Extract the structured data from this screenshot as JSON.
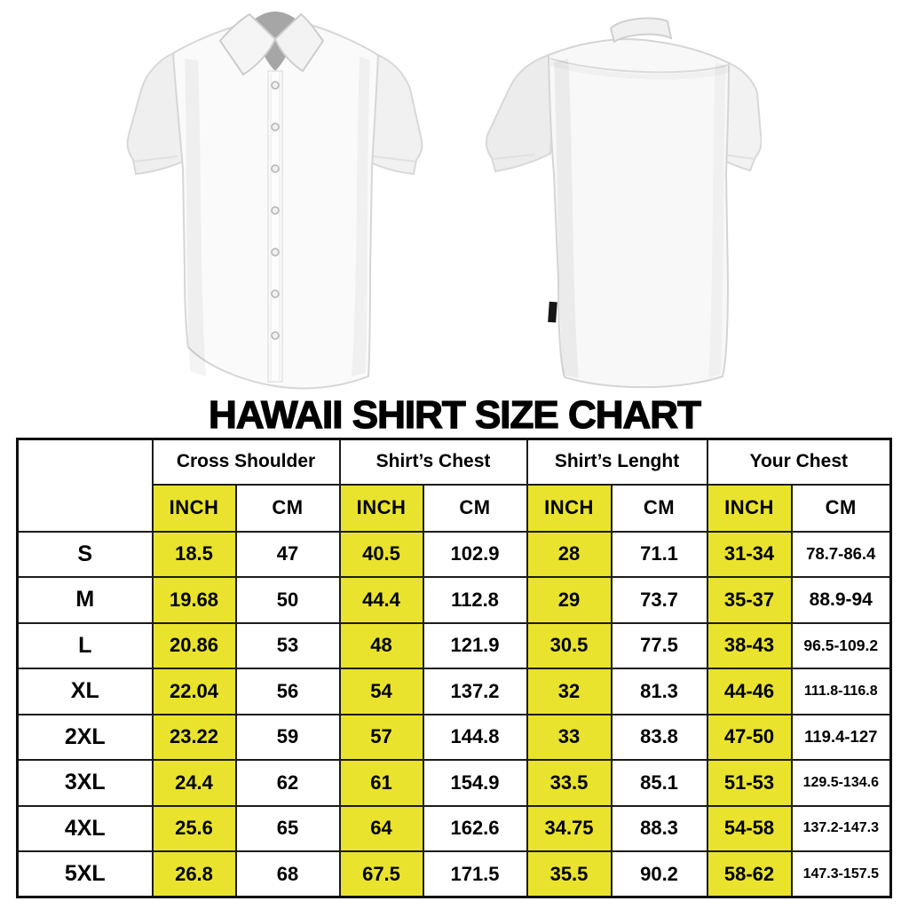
{
  "colors": {
    "highlight_yellow": "#e9e32d",
    "table_border": "#1b1b1b",
    "text": "#000000",
    "background": "#ffffff"
  },
  "images": {
    "front_shirt": "white-short-sleeve-button-shirt-front-view",
    "back_shirt": "white-short-sleeve-button-shirt-back-view"
  },
  "chart_data": {
    "type": "table",
    "title": "HAWAII SHIRT SIZE CHART",
    "column_groups": [
      "Cross Shoulder",
      "Shirt’s Chest",
      "Shirt’s Lenght",
      "Your Chest"
    ],
    "unit_headers": [
      "INCH",
      "CM",
      "INCH",
      "CM",
      "INCH",
      "CM",
      "INCH",
      "CM"
    ],
    "sizes": [
      "S",
      "M",
      "L",
      "XL",
      "2XL",
      "3XL",
      "4XL",
      "5XL"
    ],
    "rows": [
      [
        "18.5",
        "47",
        "40.5",
        "102.9",
        "28",
        "71.1",
        "31-34",
        "78.7-86.4"
      ],
      [
        "19.68",
        "50",
        "44.4",
        "112.8",
        "29",
        "73.7",
        "35-37",
        "88.9-94"
      ],
      [
        "20.86",
        "53",
        "48",
        "121.9",
        "30.5",
        "77.5",
        "38-43",
        "96.5-109.2"
      ],
      [
        "22.04",
        "56",
        "54",
        "137.2",
        "32",
        "81.3",
        "44-46",
        "111.8-116.8"
      ],
      [
        "23.22",
        "59",
        "57",
        "144.8",
        "33",
        "83.8",
        "47-50",
        "119.4-127"
      ],
      [
        "24.4",
        "62",
        "61",
        "154.9",
        "33.5",
        "85.1",
        "51-53",
        "129.5-134.6"
      ],
      [
        "25.6",
        "65",
        "64",
        "162.6",
        "34.75",
        "88.3",
        "54-58",
        "137.2-147.3"
      ],
      [
        "26.8",
        "68",
        "67.5",
        "171.5",
        "35.5",
        "90.2",
        "58-62",
        "147.3-157.5"
      ]
    ],
    "highlighted_unit": "INCH",
    "grid": true,
    "legend_position": "none"
  }
}
